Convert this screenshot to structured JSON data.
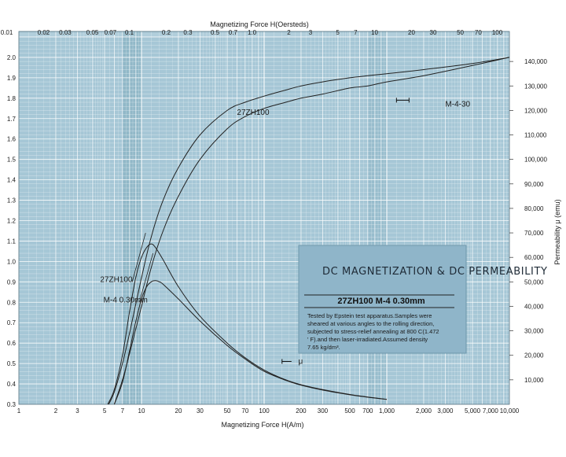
{
  "chart_data": {
    "type": "line",
    "title": "DC MAGNETIZATION & DC PERMEABILITY",
    "subtitle": "27ZH100   M-4  0.30mm",
    "note_lines": [
      "Tested by Epstein test apparatus.Samples were",
      "sheared at various angles to the rolling direction,",
      "subjected to stress-relief annealing at 800 C(1.472",
      "' F).and then laser-irradiated.Assumed density",
      "7.65 kg/dm³."
    ],
    "xlabel": "Magnetizing Force H(A/m)",
    "x2label": "Magnetizing Force H(Oersteds)",
    "y2label": "Permeability μ (emu)",
    "x_scale": "log",
    "xlim": [
      1,
      10000
    ],
    "ylim": [
      0.3,
      2.1
    ],
    "y2lim": [
      0,
      150000
    ],
    "x_ticks": [
      {
        "v": 1,
        "t": "1"
      },
      {
        "v": 2,
        "t": "2"
      },
      {
        "v": 3,
        "t": "3"
      },
      {
        "v": 5,
        "t": "5"
      },
      {
        "v": 7,
        "t": "7"
      },
      {
        "v": 10,
        "t": "10"
      },
      {
        "v": 20,
        "t": "20"
      },
      {
        "v": 30,
        "t": "30"
      },
      {
        "v": 50,
        "t": "50"
      },
      {
        "v": 70,
        "t": "70"
      },
      {
        "v": 100,
        "t": "100"
      },
      {
        "v": 200,
        "t": "200"
      },
      {
        "v": 300,
        "t": "300"
      },
      {
        "v": 500,
        "t": "500"
      },
      {
        "v": 700,
        "t": "700"
      },
      {
        "v": 1000,
        "t": "1,000"
      },
      {
        "v": 2000,
        "t": "2,000"
      },
      {
        "v": 3000,
        "t": "3,000"
      },
      {
        "v": 5000,
        "t": "5,000"
      },
      {
        "v": 7000,
        "t": "7,000"
      },
      {
        "v": 10000,
        "t": "10,000"
      }
    ],
    "x2_ticks": [
      {
        "v": 0.01,
        "t": "0.01"
      },
      {
        "v": 0.02,
        "t": "0.02"
      },
      {
        "v": 0.03,
        "t": "0.03"
      },
      {
        "v": 0.05,
        "t": "0.05"
      },
      {
        "v": 0.07,
        "t": "0.07"
      },
      {
        "v": 0.1,
        "t": "0.1"
      },
      {
        "v": 0.2,
        "t": "0.2"
      },
      {
        "v": 0.3,
        "t": "0.3"
      },
      {
        "v": 0.5,
        "t": "0.5"
      },
      {
        "v": 0.7,
        "t": "0.7"
      },
      {
        "v": 1,
        "t": "1.0"
      },
      {
        "v": 2,
        "t": "2"
      },
      {
        "v": 3,
        "t": "3"
      },
      {
        "v": 5,
        "t": "5"
      },
      {
        "v": 7,
        "t": "7"
      },
      {
        "v": 10,
        "t": "10"
      },
      {
        "v": 20,
        "t": "20"
      },
      {
        "v": 30,
        "t": "30"
      },
      {
        "v": 50,
        "t": "50"
      },
      {
        "v": 70,
        "t": "70"
      },
      {
        "v": 100,
        "t": "100"
      }
    ],
    "y_ticks": [
      {
        "v": 0.3,
        "t": "0.3"
      },
      {
        "v": 0.4,
        "t": "0.4"
      },
      {
        "v": 0.5,
        "t": "0.5"
      },
      {
        "v": 0.6,
        "t": "0.6"
      },
      {
        "v": 0.7,
        "t": "0.7"
      },
      {
        "v": 0.8,
        "t": "0.8"
      },
      {
        "v": 0.9,
        "t": "0.9"
      },
      {
        "v": 1.0,
        "t": "1.0"
      },
      {
        "v": 1.1,
        "t": "1.1"
      },
      {
        "v": 1.2,
        "t": "1.2"
      },
      {
        "v": 1.3,
        "t": "1.3"
      },
      {
        "v": 1.4,
        "t": "1.4"
      },
      {
        "v": 1.5,
        "t": "1.5"
      },
      {
        "v": 1.6,
        "t": "1.6"
      },
      {
        "v": 1.7,
        "t": "1.7"
      },
      {
        "v": 1.8,
        "t": "1.8"
      },
      {
        "v": 1.9,
        "t": "1.9"
      },
      {
        "v": 2.0,
        "t": "2.0"
      }
    ],
    "y2_ticks": [
      {
        "v": 10000,
        "t": "10,000"
      },
      {
        "v": 20000,
        "t": "20,000"
      },
      {
        "v": 30000,
        "t": "30,000"
      },
      {
        "v": 40000,
        "t": "40,000"
      },
      {
        "v": 50000,
        "t": "50,000"
      },
      {
        "v": 60000,
        "t": "60,000"
      },
      {
        "v": 70000,
        "t": "70,000"
      },
      {
        "v": 80000,
        "t": "80,000"
      },
      {
        "v": 90000,
        "t": "90,000"
      },
      {
        "v": 100000,
        "t": "100,000"
      },
      {
        "v": 110000,
        "t": "110,000"
      },
      {
        "v": 120000,
        "t": "120,000"
      },
      {
        "v": 130000,
        "t": "130,000"
      },
      {
        "v": 140000,
        "t": "140,000"
      }
    ],
    "series": [
      {
        "name": "27ZH100",
        "axis": "left",
        "x": [
          5.4,
          6,
          7,
          8,
          10,
          12,
          15,
          20,
          30,
          50,
          70,
          100,
          150,
          200,
          300,
          500,
          700,
          1000,
          2000,
          5000,
          10000
        ],
        "y": [
          0.3,
          0.36,
          0.5,
          0.65,
          0.92,
          1.12,
          1.3,
          1.46,
          1.62,
          1.74,
          1.78,
          1.81,
          1.84,
          1.86,
          1.88,
          1.9,
          1.91,
          1.92,
          1.94,
          1.97,
          2.0
        ]
      },
      {
        "name": "M-4-30",
        "axis": "left",
        "x": [
          6,
          7,
          8,
          10,
          12,
          15,
          20,
          30,
          50,
          70,
          100,
          150,
          200,
          300,
          500,
          700,
          1000,
          2000,
          5000,
          10000
        ],
        "y": [
          0.3,
          0.42,
          0.55,
          0.78,
          0.97,
          1.15,
          1.32,
          1.5,
          1.65,
          1.71,
          1.75,
          1.78,
          1.8,
          1.82,
          1.85,
          1.86,
          1.88,
          1.91,
          1.96,
          2.0
        ]
      },
      {
        "name": "27ZH100 μ",
        "axis": "right",
        "x": [
          5.3,
          6,
          7,
          8,
          9,
          10,
          11,
          12,
          13,
          15,
          20,
          30,
          50,
          70,
          100,
          150,
          200,
          300,
          500,
          700,
          1000
        ],
        "y": [
          0,
          6000,
          20000,
          38000,
          52000,
          60000,
          64000,
          65500,
          64000,
          59000,
          48000,
          36000,
          25000,
          19000,
          14000,
          10000,
          8000,
          6000,
          4000,
          3000,
          2000
        ]
      },
      {
        "name": "M-4 μ",
        "axis": "right",
        "x": [
          6,
          7,
          8,
          9,
          10,
          11,
          12,
          13,
          14,
          15,
          20,
          30,
          50,
          70,
          100,
          150,
          200,
          300,
          500,
          700,
          1000
        ],
        "y": [
          0,
          9000,
          22000,
          34000,
          43000,
          48000,
          50000,
          50500,
          50000,
          49000,
          43000,
          34000,
          24000,
          18500,
          13500,
          9800,
          7800,
          5800,
          3900,
          2900,
          2000
        ]
      }
    ],
    "annotations": [
      {
        "text": "27ZH100",
        "x": 60,
        "y": 1.73
      },
      {
        "text": "M-4-30",
        "x": 3000,
        "y": 1.77
      },
      {
        "text": "27ZH100",
        "x": 4.6,
        "y": 0.91
      },
      {
        "text": "M-4  0.30mm",
        "x": 4.9,
        "y": 0.81
      },
      {
        "text": "μ",
        "x": 190,
        "y": 0.51
      }
    ],
    "grid": true,
    "colors": {
      "background": "#a6c7d6",
      "grid": "#ffffff",
      "band": "#8fb6c7",
      "box": "#8fb5c9",
      "curve": "#222222"
    }
  }
}
